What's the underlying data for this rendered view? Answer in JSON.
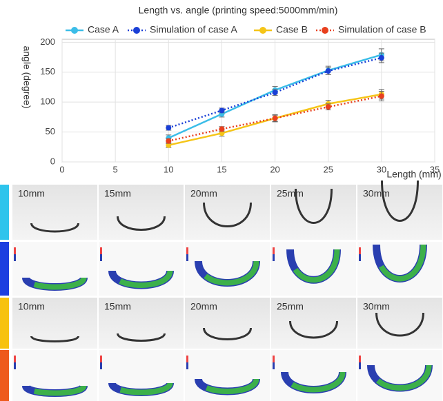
{
  "chart_data": {
    "type": "line",
    "title": "Length vs. angle (printing speed:5000mm/min)",
    "x_label": "Length (mm)",
    "y_label": "angle (degree)",
    "x": [
      10,
      15,
      20,
      25,
      30
    ],
    "series": [
      {
        "name": "Case A",
        "color": "#3bbde8",
        "linestyle": "solid",
        "values": [
          40,
          80,
          120,
          153,
          179
        ],
        "errors": [
          5,
          5,
          6,
          7,
          10
        ]
      },
      {
        "name": "Simulation of case A",
        "color": "#1a3fd6",
        "linestyle": "dotted",
        "values": [
          57,
          86,
          116,
          152,
          174
        ],
        "errors": [
          4,
          4,
          5,
          6,
          8
        ]
      },
      {
        "name": "Case B",
        "color": "#f5c518",
        "linestyle": "solid",
        "values": [
          28,
          48,
          73,
          97,
          113
        ],
        "errors": [
          4,
          5,
          5,
          6,
          8
        ]
      },
      {
        "name": "Simulation of case B",
        "color": "#e8401e",
        "linestyle": "dotted",
        "values": [
          35,
          55,
          73,
          92,
          110
        ],
        "errors": [
          4,
          4,
          6,
          5,
          8
        ]
      }
    ],
    "xlim": [
      0,
      35
    ],
    "xticks": [
      0,
      5,
      10,
      15,
      20,
      25,
      30,
      35
    ],
    "ylim": [
      0,
      205
    ],
    "yticks": [
      0,
      50,
      100,
      150,
      200
    ],
    "grid": true
  },
  "panels": {
    "case_a_labels": [
      "10mm",
      "15mm",
      "20mm",
      "25mm",
      "30mm"
    ],
    "case_b_labels": [
      "10mm",
      "15mm",
      "20mm",
      "25mm",
      "30mm"
    ]
  }
}
